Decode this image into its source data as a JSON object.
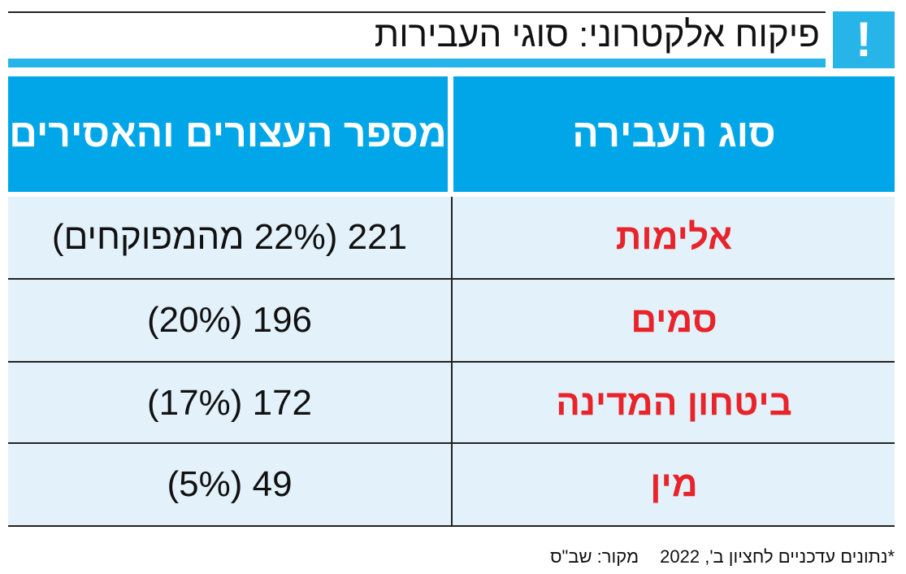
{
  "header": {
    "title": "פיקוח אלקטרוני: סוגי העבירות",
    "badge": "!"
  },
  "table": {
    "headers": {
      "offense_type": "סוג העבירה",
      "count": "מספר העצורים והאסירים"
    },
    "rows": [
      {
        "offense": "אלימות",
        "count": "221 (22% מהמפוקחים)"
      },
      {
        "offense": "סמים",
        "count": "196 (20%)"
      },
      {
        "offense": "ביטחון המדינה",
        "count": "172 (17%)"
      },
      {
        "offense": "מין",
        "count": "49 (5%)"
      }
    ]
  },
  "footnote": {
    "note": "*נתונים עדכניים לחציון ב', 2022",
    "source": "מקור: שב\"ס"
  },
  "colors": {
    "accent": "#27b4e8",
    "header_fill": "#00a6e8",
    "row_fill": "#e3f1fa",
    "offense_text": "#e8232a"
  }
}
